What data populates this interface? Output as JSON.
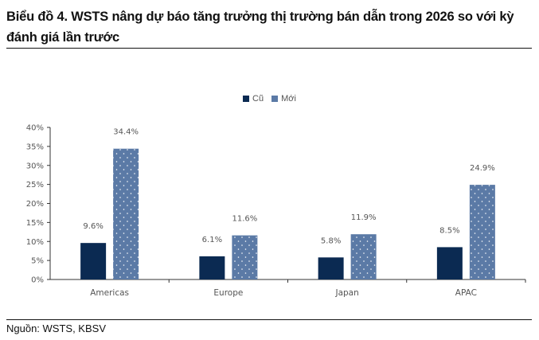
{
  "header": {
    "title": "Biểu đồ 4. WSTS nâng dự báo tăng trưởng thị trường bán dẫn trong 2026 so với kỳ đánh giá lần trước"
  },
  "footer": {
    "source": "Nguồn: WSTS, KBSV"
  },
  "legend": {
    "items": [
      {
        "label": "Cũ",
        "color": "#0b2a52"
      },
      {
        "label": "Mới",
        "color": "#5b7aa6"
      }
    ]
  },
  "colors": {
    "old": "#0b2a52",
    "new": "#5b7aa6",
    "axis": "#333333"
  },
  "chart_data": {
    "type": "bar",
    "title": "Biểu đồ 4. WSTS nâng dự báo tăng trưởng thị trường bán dẫn trong 2026 so với kỳ đánh giá lần trước",
    "categories": [
      "Americas",
      "Europe",
      "Japan",
      "APAC"
    ],
    "series": [
      {
        "name": "Cũ",
        "values": [
          9.6,
          6.1,
          5.8,
          8.5
        ],
        "labels": [
          "9.6%",
          "6.1%",
          "5.8%",
          "8.5%"
        ]
      },
      {
        "name": "Mới",
        "values": [
          34.4,
          11.6,
          11.9,
          24.9
        ],
        "labels": [
          "34.4%",
          "11.6%",
          "11.9%",
          "24.9%"
        ]
      }
    ],
    "xlabel": "",
    "ylabel": "",
    "ylim": [
      0,
      40
    ],
    "yticks": [
      "0%",
      "5%",
      "10%",
      "15%",
      "20%",
      "25%",
      "30%",
      "35%",
      "40%"
    ],
    "grid": false,
    "legend_position": "top"
  }
}
